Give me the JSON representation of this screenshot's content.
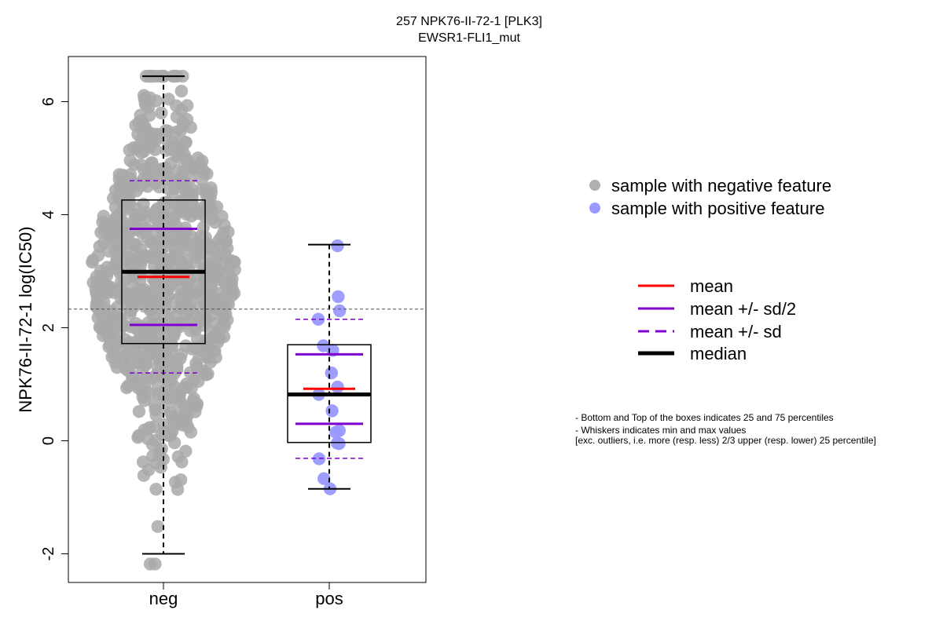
{
  "title": "257 NPK76-II-72-1 [PLK3]",
  "subtitle": "EWSR1-FLI1_mut",
  "chart_data": {
    "type": "boxplot",
    "title": "257 NPK76-II-72-1 [PLK3]",
    "subtitle": "EWSR1-FLI1_mut",
    "xlabel": "",
    "ylabel": "NPK76-II-72-1 log(IC50)",
    "categories": [
      "neg",
      "pos"
    ],
    "ylim": [
      -2.5,
      6.8
    ],
    "yticks": [
      -2,
      0,
      2,
      4,
      6
    ],
    "reference_line": 2.33,
    "grid": false,
    "boxes": [
      {
        "group": "neg",
        "min": -2.0,
        "q1": 1.72,
        "median": 2.99,
        "q3": 4.26,
        "max": 6.45,
        "mean": 2.9,
        "mean_minus_half_sd": 2.05,
        "mean_plus_half_sd": 3.75,
        "mean_minus_sd": 1.2,
        "mean_plus_sd": 4.6
      },
      {
        "group": "pos",
        "min": -0.85,
        "q1": -0.03,
        "median": 0.82,
        "q3": 1.7,
        "max": 3.47,
        "mean": 0.92,
        "mean_minus_half_sd": 0.3,
        "mean_plus_half_sd": 1.53,
        "mean_minus_sd": -0.31,
        "mean_plus_sd": 2.15
      }
    ],
    "pos_points": [
      3.45,
      2.55,
      2.3,
      2.15,
      1.68,
      1.6,
      1.2,
      0.95,
      0.82,
      0.53,
      0.18,
      0.15,
      -0.05,
      -0.04,
      -0.32,
      -0.67,
      -0.85
    ],
    "neg_point_count": 900,
    "colors": {
      "negative": "#a9a9a9",
      "positive": "#9999ff",
      "mean": "#ff0000",
      "sd": "#8000d0",
      "median": "#000000"
    },
    "legend": {
      "position": "right",
      "samples": [
        {
          "label": "sample with negative feature",
          "color": "#b0b0b0"
        },
        {
          "label": "sample with positive feature",
          "color": "#9999ff"
        }
      ],
      "lines": [
        {
          "label": "mean",
          "color": "#ff0000",
          "style": "solid"
        },
        {
          "label": "mean +/- sd/2",
          "color": "#8000d0",
          "style": "solid"
        },
        {
          "label": "mean +/- sd",
          "color": "#8000d0",
          "style": "dashed"
        },
        {
          "label": "median",
          "color": "#000000",
          "style": "thick"
        }
      ]
    }
  },
  "notes": [
    "- Bottom and Top of the boxes indicates 25 and 75 percentiles",
    "- Whiskers indicates min and max values",
    "[exc. outliers, i.e. more (resp. less) 2/3 upper (resp. lower) 25 percentile]"
  ]
}
